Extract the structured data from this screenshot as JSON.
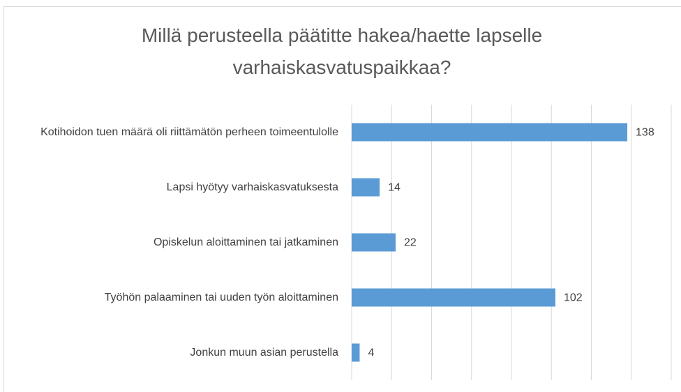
{
  "chart_data": {
    "type": "bar",
    "orientation": "horizontal",
    "title": "Millä perusteella päätitte hakea/haette lapselle varhaiskasvatuspaikkaa?",
    "categories": [
      "Kotihoidon tuen määrä oli riittämätön perheen toimeentulolle",
      "Lapsi hyötyy varhaiskasvatuksesta",
      "Opiskelun aloittaminen tai jatkaminen",
      "Työhön palaaminen tai uuden työn aloittaminen",
      "Jonkun muun asian perustella"
    ],
    "values": [
      138,
      14,
      22,
      102,
      4
    ],
    "color": "#5b9bd5",
    "xlim": [
      0,
      160
    ],
    "xticks": [
      0,
      20,
      40,
      60,
      80,
      100,
      120,
      140,
      160
    ],
    "grid": true
  }
}
